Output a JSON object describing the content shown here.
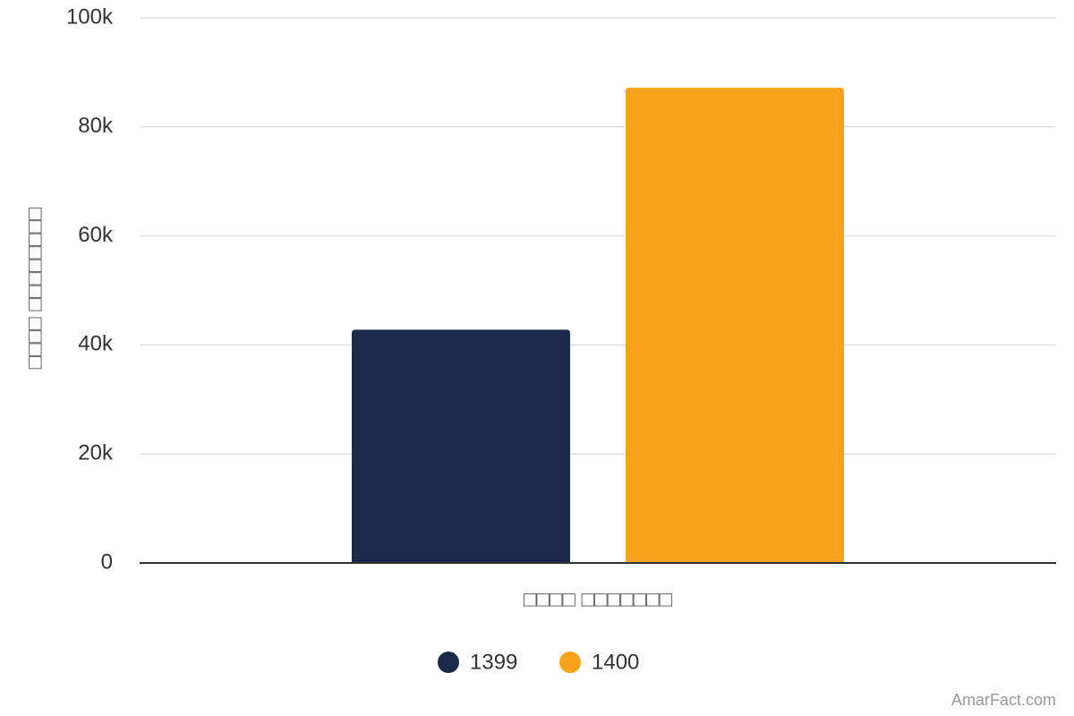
{
  "chart_data": {
    "type": "bar",
    "y_label": "□□□□ □□□□□□□□",
    "categories": [
      "□□□□ □□□□□□□"
    ],
    "series": [
      {
        "name": "1399",
        "color": "#1b2a4b",
        "values": [
          42800
        ]
      },
      {
        "name": "1400",
        "color": "#f9a21b",
        "values": [
          87200
        ]
      }
    ],
    "ylim": [
      0,
      100000
    ],
    "yticks": [
      0,
      {
        "value": 20000,
        "label": "20k"
      },
      {
        "value": 40000,
        "label": "40k"
      },
      {
        "value": 60000,
        "label": "60k"
      },
      {
        "value": 80000,
        "label": "80k"
      },
      {
        "value": 100000,
        "label": "100k"
      }
    ],
    "grid": true,
    "legend": "bottom",
    "credit": "AmarFact.com"
  }
}
